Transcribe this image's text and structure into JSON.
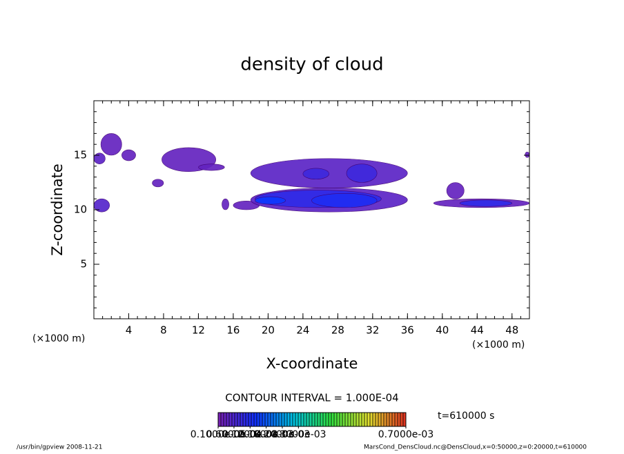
{
  "chart_data": {
    "type": "contour",
    "title": "density of cloud",
    "x_label": "X-coordinate",
    "y_label": "Z-coordinate",
    "x_unit": "(×1000 m)",
    "y_unit": "(×1000 m)",
    "xlim": [
      0,
      50
    ],
    "ylim": [
      0,
      20
    ],
    "xticks": [
      4,
      8,
      12,
      16,
      20,
      24,
      28,
      32,
      36,
      40,
      44,
      48
    ],
    "yticks": [
      5,
      10,
      15
    ],
    "patches": {
      "x_start": [
        0,
        0.8,
        3.2,
        0,
        7.8,
        12,
        6.7,
        14.7,
        16,
        18,
        18.5,
        25,
        18.5,
        18,
        24,
        29,
        39,
        42,
        40.5,
        49.5
      ],
      "x_end": [
        1.3,
        3.2,
        4.8,
        1.8,
        14,
        15,
        8,
        15.5,
        19,
        36,
        33,
        32.5,
        22,
        36,
        27,
        32.5,
        50,
        48,
        42.5,
        50
      ],
      "z_start": [
        14.2,
        15,
        14.5,
        9.8,
        13.5,
        13.6,
        12.1,
        10,
        10,
        9.8,
        10.2,
        10.2,
        10.5,
        12,
        12.8,
        12.5,
        10.2,
        10.3,
        11,
        14.8
      ],
      "z_end": [
        15.2,
        17,
        15.5,
        11,
        15.7,
        14.2,
        12.8,
        11,
        10.8,
        12,
        11.8,
        11.5,
        11.2,
        14.7,
        13.8,
        14.2,
        11,
        10.9,
        12.5,
        15.3
      ],
      "values": [
        4e-05,
        3e-05,
        3e-05,
        5e-05,
        3e-05,
        3e-05,
        3e-05,
        3e-05,
        3e-05,
        4e-05,
        0.0001,
        0.00012,
        0.00015,
        4e-05,
        8e-05,
        8e-05,
        3e-05,
        0.0001,
        3e-05,
        3e-05
      ]
    },
    "colormap": [
      "#7a1fb0",
      "#1030ff",
      "#00c0e0",
      "#30e040",
      "#e0e030",
      "#e03020"
    ],
    "clim": [
      1e-06,
      0.0007
    ],
    "colorbar_ticks": [
      {
        "value": 1e-06,
        "label": "0.1000e-05"
      },
      {
        "value": 6e-05,
        "label": "0.6000e-04"
      },
      {
        "value": 0.00012,
        "label": "0.1200e-03"
      },
      {
        "value": 0.00018,
        "label": "0.1800e-03"
      },
      {
        "value": 0.00024,
        "label": "0.2400e-03"
      },
      {
        "value": 0.0003,
        "label": "0.3000e-03"
      },
      {
        "value": 0.0007,
        "label": "0.7000e-03"
      }
    ],
    "contour_interval": "CONTOUR INTERVAL = 1.000E-04",
    "time_label": "t=610000 s",
    "footer_left": "/usr/bin/gpview  2008-11-21",
    "footer_right": "MarsCond_DensCloud.nc@DensCloud,x=0:50000,z=0:20000,t=610000"
  }
}
